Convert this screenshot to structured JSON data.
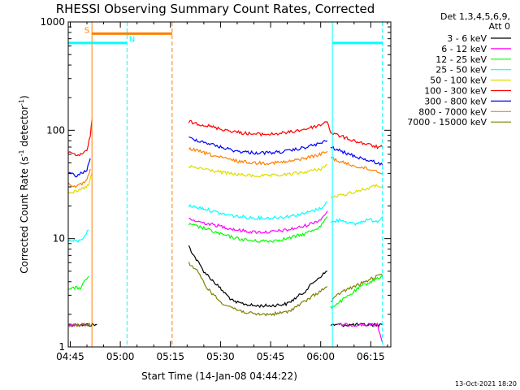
{
  "chart_data": {
    "type": "line",
    "title": "RHESSI Observing Summary Count Rates, Corrected",
    "xlabel": "Start Time (14-Jan-08 04:44:22)",
    "ylabel_main": "Corrected Count Rate (s",
    "ylabel_sup1": "-1",
    "ylabel_mid": " detector",
    "ylabel_sup2": "-1",
    "ylabel_end": ")",
    "y_scale": "log",
    "ylim": [
      1,
      1000
    ],
    "xlim_min": [
      284.4,
      381
    ],
    "x_ticks": [
      {
        "v": 285,
        "label": "04:45"
      },
      {
        "v": 300,
        "label": "05:00"
      },
      {
        "v": 315,
        "label": "05:15"
      },
      {
        "v": 330,
        "label": "05:30"
      },
      {
        "v": 345,
        "label": "05:45"
      },
      {
        "v": 360,
        "label": "06:00"
      },
      {
        "v": 375,
        "label": "06:15"
      }
    ],
    "y_ticks": [
      {
        "v": 1,
        "label": "1"
      },
      {
        "v": 10,
        "label": "10"
      },
      {
        "v": 100,
        "label": "100"
      },
      {
        "v": 1000,
        "label": "1000"
      }
    ],
    "legend_header": [
      "Det 1,3,4,5,6,9,",
      "Att 0"
    ],
    "legend_position": "right",
    "series": [
      {
        "name": "3 - 6 keV",
        "color": "#000000",
        "segments": [
          {
            "x": [
              284.5,
              288,
              292,
              293
            ],
            "y": [
              1.6,
              1.6,
              1.6,
              1.6
            ]
          },
          {
            "x": [
              320.5,
              322,
              325,
              328,
              331,
              334,
              340,
              345,
              350,
              355,
              358,
              360,
              362
            ],
            "y": [
              8.5,
              7,
              5,
              4,
              3.2,
              2.6,
              2.4,
              2.4,
              2.5,
              3.2,
              4,
              4.5,
              5
            ]
          },
          {
            "x": [
              363,
              366,
              372,
              377,
              378.5
            ],
            "y": [
              1.6,
              1.6,
              1.6,
              1.6,
              1.6
            ]
          }
        ]
      },
      {
        "name": "6 - 12 keV",
        "color": "#ff00ff",
        "segments": [
          {
            "x": [
              284.5,
              288,
              290
            ],
            "y": [
              1.6,
              1.6,
              1.6
            ]
          },
          {
            "x": [
              320.5,
              325,
              330,
              335,
              340,
              345,
              350,
              355,
              360,
              362
            ],
            "y": [
              15,
              14,
              13,
              12,
              11.5,
              11.5,
              12,
              13,
              15,
              18
            ]
          },
          {
            "x": [
              365,
              370,
              377,
              378.5
            ],
            "y": [
              1.6,
              1.6,
              1.6,
              1.1
            ]
          }
        ]
      },
      {
        "name": "12 - 25 keV",
        "color": "#00ff00",
        "segments": [
          {
            "x": [
              284.5,
              288,
              290.5
            ],
            "y": [
              3.5,
              3.5,
              4.5
            ]
          },
          {
            "x": [
              320.5,
              325,
              330,
              335,
              340,
              345,
              350,
              355,
              360,
              362
            ],
            "y": [
              13.5,
              12.5,
              11,
              10,
              9.5,
              9.5,
              10,
              11,
              13,
              16
            ]
          },
          {
            "x": [
              363,
              368,
              372,
              377,
              378.5
            ],
            "y": [
              2.3,
              2.9,
              3.6,
              4.3,
              4.5
            ]
          }
        ]
      },
      {
        "name": "25 - 50 keV",
        "color": "#00ffff",
        "segments": [
          {
            "x": [
              284.5,
              288,
              290.5
            ],
            "y": [
              9.5,
              9.5,
              12
            ]
          },
          {
            "x": [
              320.5,
              325,
              330,
              335,
              340,
              345,
              350,
              355,
              360,
              362
            ],
            "y": [
              20,
              19,
              17,
              16,
              15.5,
              15.5,
              16,
              17,
              19,
              22
            ]
          },
          {
            "x": [
              363,
              366,
              370,
              374,
              377,
              378.5
            ],
            "y": [
              14,
              15,
              13.5,
              15,
              14.5,
              16
            ]
          }
        ]
      },
      {
        "name": "50 - 100 keV",
        "color": "#dddd00",
        "segments": [
          {
            "x": [
              284.5,
              287,
              290.5,
              291.5
            ],
            "y": [
              27,
              27,
              31,
              40
            ]
          },
          {
            "x": [
              320.5,
              325,
              330,
              335,
              340,
              345,
              350,
              355,
              360,
              362
            ],
            "y": [
              46,
              44,
              41,
              39,
              38,
              38,
              39,
              41,
              44,
              48
            ]
          },
          {
            "x": [
              363,
              366,
              370,
              374,
              377,
              378.5
            ],
            "y": [
              24,
              25,
              27,
              29,
              31,
              30
            ]
          }
        ]
      },
      {
        "name": "100 - 300 keV",
        "color": "#ff0000",
        "segments": [
          {
            "x": [
              284.5,
              287,
              290,
              291,
              291.5
            ],
            "y": [
              62,
              58,
              64,
              90,
              125
            ]
          },
          {
            "x": [
              320.5,
              325,
              330,
              335,
              340,
              345,
              350,
              355,
              360,
              362,
              363
            ],
            "y": [
              120,
              112,
              103,
              96,
              92,
              92,
              95,
              102,
              112,
              122,
              95
            ]
          },
          {
            "x": [
              363,
              366,
              370,
              374,
              377,
              378.5
            ],
            "y": [
              95,
              88,
              80,
              74,
              70,
              70
            ]
          }
        ]
      },
      {
        "name": "300 - 800 keV",
        "color": "#0000ff",
        "segments": [
          {
            "x": [
              284.5,
              287,
              290,
              291
            ],
            "y": [
              40,
              38,
              43,
              55
            ]
          },
          {
            "x": [
              320.5,
              325,
              330,
              335,
              340,
              345,
              350,
              355,
              360,
              362
            ],
            "y": [
              85,
              78,
              70,
              64,
              62,
              62,
              64,
              69,
              76,
              80
            ]
          },
          {
            "x": [
              363,
              366,
              370,
              374,
              377,
              378.5
            ],
            "y": [
              70,
              64,
              58,
              53,
              50,
              48
            ]
          }
        ]
      },
      {
        "name": "800 - 7000 keV",
        "color": "#ff7f00",
        "segments": [
          {
            "x": [
              284.5,
              287,
              290,
              291
            ],
            "y": [
              32,
              30,
              34,
              44
            ]
          },
          {
            "x": [
              320.5,
              325,
              330,
              335,
              340,
              345,
              350,
              355,
              360,
              362
            ],
            "y": [
              68,
              62,
              56,
              52,
              50,
              50,
              51,
              55,
              60,
              64
            ]
          },
          {
            "x": [
              363,
              366,
              370,
              374,
              377,
              378.5
            ],
            "y": [
              56,
              51,
              47,
              44,
              42,
              40
            ]
          }
        ]
      },
      {
        "name": "7000 - 15000 keV",
        "color": "#808000",
        "segments": [
          {
            "x": [
              284.5,
              288,
              291
            ],
            "y": [
              1.6,
              1.6,
              1.6
            ]
          },
          {
            "x": [
              320.5,
              323,
              326,
              330,
              335,
              340,
              345,
              350,
              355,
              360,
              362
            ],
            "y": [
              6,
              5,
              3.5,
              2.6,
              2.2,
              2,
              2,
              2.1,
              2.6,
              3.3,
              3.6
            ]
          },
          {
            "x": [
              363,
              366,
              370,
              374,
              377,
              378.5
            ],
            "y": [
              2.6,
              3.2,
              3.6,
              4.1,
              4.5,
              4.6
            ]
          }
        ]
      }
    ],
    "annotations": [
      {
        "label": "S",
        "color": "#ff7f00",
        "bar_x": [
          291.5,
          315.5
        ],
        "bar_y": 780,
        "label_x": 289.2,
        "label_y": 790
      },
      {
        "label": "N",
        "color": "#00ffff",
        "bar_x": [
          284.5,
          302
        ],
        "bar_y": 640,
        "label_x": 302.6,
        "label_y": 655
      },
      {
        "label": "",
        "color": "#00ffff",
        "bar_x": [
          363.5,
          378.5
        ],
        "bar_y": 640
      }
    ],
    "vlines": [
      {
        "x": 291.5,
        "color": "#ff7f00",
        "dash": false
      },
      {
        "x": 315.5,
        "color": "#ff7f00",
        "dash": true
      },
      {
        "x": 302,
        "color": "#00ffff",
        "dash": true
      },
      {
        "x": 363.5,
        "color": "#00ffff",
        "dash": false
      },
      {
        "x": 378.5,
        "color": "#00ffff",
        "dash": true
      }
    ]
  },
  "footer_stamp": "13-Oct-2021 18:20"
}
